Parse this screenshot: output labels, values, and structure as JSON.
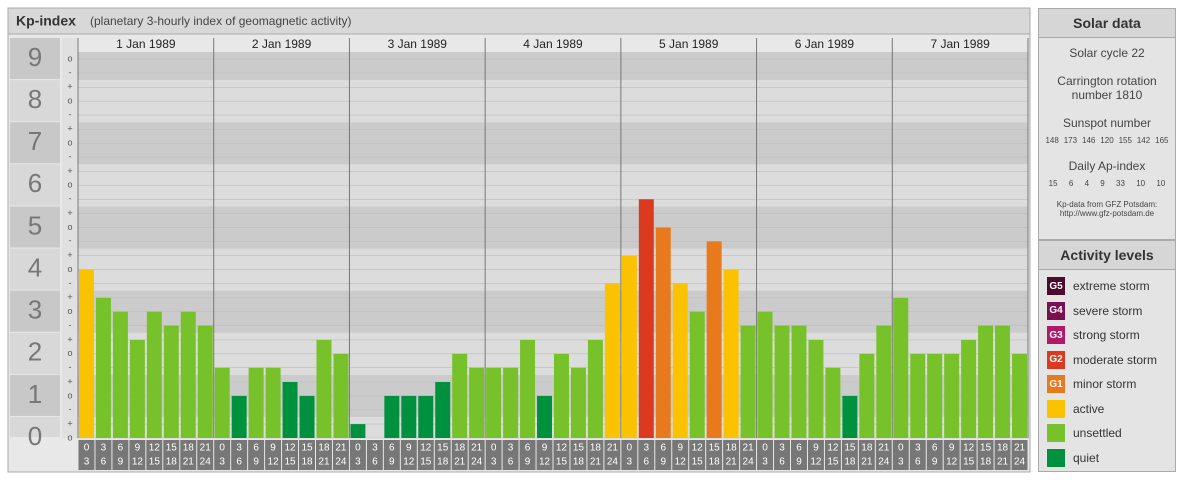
{
  "chart_data": {
    "type": "bar",
    "title": "Kp-index",
    "subtitle": "(planetary 3-hourly index of geomagnetic activity)",
    "ylim": [
      0,
      9.5
    ],
    "yticks": [
      0,
      1,
      2,
      3,
      4,
      5,
      6,
      7,
      8,
      9
    ],
    "minor_yticks": [
      {
        "value": 0,
        "label": "o"
      },
      {
        "value": 0.33,
        "label": "+"
      },
      {
        "value": 0.67,
        "label": "-"
      },
      {
        "value": 1,
        "label": "o"
      },
      {
        "value": 1.33,
        "label": "+"
      },
      {
        "value": 1.67,
        "label": "-"
      },
      {
        "value": 2,
        "label": "o"
      },
      {
        "value": 2.33,
        "label": "+"
      },
      {
        "value": 2.67,
        "label": "-"
      },
      {
        "value": 3,
        "label": "o"
      },
      {
        "value": 3.33,
        "label": "+"
      },
      {
        "value": 3.67,
        "label": "-"
      },
      {
        "value": 4,
        "label": "o"
      },
      {
        "value": 4.33,
        "label": "+"
      },
      {
        "value": 4.67,
        "label": "-"
      },
      {
        "value": 5,
        "label": "o"
      },
      {
        "value": 5.33,
        "label": "+"
      },
      {
        "value": 5.67,
        "label": "-"
      },
      {
        "value": 6,
        "label": "o"
      },
      {
        "value": 6.33,
        "label": "+"
      },
      {
        "value": 6.67,
        "label": "-"
      },
      {
        "value": 7,
        "label": "o"
      },
      {
        "value": 7.33,
        "label": "+"
      },
      {
        "value": 7.67,
        "label": "-"
      },
      {
        "value": 8,
        "label": "o"
      },
      {
        "value": 8.33,
        "label": "+"
      },
      {
        "value": 8.67,
        "label": "-"
      },
      {
        "value": 9,
        "label": "o"
      }
    ],
    "hour_slots": [
      {
        "start": "0",
        "end": "3"
      },
      {
        "start": "3",
        "end": "6"
      },
      {
        "start": "6",
        "end": "9"
      },
      {
        "start": "9",
        "end": "12"
      },
      {
        "start": "12",
        "end": "15"
      },
      {
        "start": "15",
        "end": "18"
      },
      {
        "start": "18",
        "end": "21"
      },
      {
        "start": "21",
        "end": "24"
      }
    ],
    "days": [
      {
        "date": "1 Jan 1989",
        "values": [
          4,
          3.33,
          3,
          2.33,
          3,
          2.67,
          3,
          2.67
        ],
        "colors": [
          "#fbc200",
          "#77c12a",
          "#77c12a",
          "#77c12a",
          "#77c12a",
          "#77c12a",
          "#77c12a",
          "#77c12a"
        ]
      },
      {
        "date": "2 Jan 1989",
        "values": [
          1.67,
          1,
          1.67,
          1.67,
          1.33,
          1,
          2.33,
          2
        ],
        "colors": [
          "#77c12a",
          "#00913f",
          "#77c12a",
          "#77c12a",
          "#00913f",
          "#00913f",
          "#77c12a",
          "#77c12a"
        ]
      },
      {
        "date": "3 Jan 1989",
        "values": [
          0.33,
          0,
          1,
          1,
          1,
          1.33,
          2,
          1.67
        ],
        "colors": [
          "#00913f",
          "#00913f",
          "#00913f",
          "#00913f",
          "#00913f",
          "#00913f",
          "#77c12a",
          "#77c12a"
        ]
      },
      {
        "date": "4 Jan 1989",
        "values": [
          1.67,
          1.67,
          2.33,
          1,
          2,
          1.67,
          2.33,
          3.67
        ],
        "colors": [
          "#77c12a",
          "#77c12a",
          "#77c12a",
          "#00913f",
          "#77c12a",
          "#77c12a",
          "#77c12a",
          "#fbc200"
        ]
      },
      {
        "date": "5 Jan 1989",
        "values": [
          4.33,
          5.67,
          5,
          3.67,
          3,
          4.67,
          4,
          2.67
        ],
        "colors": [
          "#fbc200",
          "#dc3a20",
          "#e8791c",
          "#fbc200",
          "#77c12a",
          "#e8791c",
          "#fbc200",
          "#77c12a"
        ]
      },
      {
        "date": "6 Jan 1989",
        "values": [
          3,
          2.67,
          2.67,
          2.33,
          1.67,
          1,
          2,
          2.67
        ],
        "colors": [
          "#77c12a",
          "#77c12a",
          "#77c12a",
          "#77c12a",
          "#77c12a",
          "#00913f",
          "#77c12a",
          "#77c12a"
        ]
      },
      {
        "date": "7 Jan 1989",
        "values": [
          3.33,
          2,
          2,
          2,
          2.33,
          2.67,
          2.67,
          2
        ],
        "colors": [
          "#77c12a",
          "#77c12a",
          "#77c12a",
          "#77c12a",
          "#77c12a",
          "#77c12a",
          "#77c12a",
          "#77c12a"
        ]
      }
    ]
  },
  "solar_data": {
    "title": "Solar data",
    "cycle": "Solar cycle 22",
    "carrington": "Carrington rotation number 1810",
    "sunspot_title": "Sunspot number",
    "sunspot_numbers": [
      148,
      173,
      146,
      120,
      155,
      142,
      165
    ],
    "ap_title": "Daily Ap-index",
    "ap_values": [
      15,
      6,
      4,
      9,
      33,
      10,
      10
    ],
    "source": "Kp-data from GFZ Potsdam:",
    "source_url": "http://www.gfz-potsdam.de"
  },
  "activity_levels": {
    "title": "Activity levels",
    "items": [
      {
        "badge": "G5",
        "label": "extreme storm",
        "color": "#4d0a2c"
      },
      {
        "badge": "G4",
        "label": "severe storm",
        "color": "#7a1050"
      },
      {
        "badge": "G3",
        "label": "strong storm",
        "color": "#b0186a"
      },
      {
        "badge": "G2",
        "label": "moderate storm",
        "color": "#dc3a20"
      },
      {
        "badge": "G1",
        "label": "minor storm",
        "color": "#e8791c"
      },
      {
        "label": "active",
        "color": "#fbc200"
      },
      {
        "label": "unsettled",
        "color": "#77c12a"
      },
      {
        "label": "quiet",
        "color": "#00913f"
      }
    ]
  }
}
